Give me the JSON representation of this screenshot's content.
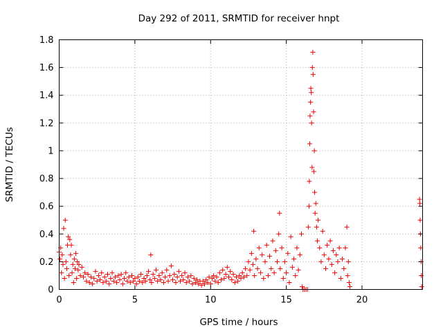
{
  "chart_data": {
    "type": "scatter",
    "title": "Day 292 of 2011, SRMTID for receiver hnpt",
    "xlabel": "GPS time / hours",
    "ylabel": "SRMTID / TECUs",
    "xlim": [
      0,
      24
    ],
    "ylim": [
      0,
      1.8
    ],
    "xticks": [
      0,
      5,
      10,
      15,
      20
    ],
    "yticks": [
      0,
      0.2,
      0.4,
      0.6,
      0.8,
      1,
      1.2,
      1.4,
      1.6,
      1.8
    ],
    "ytick_labels": [
      "0",
      "0.2",
      "0.4",
      "0.6",
      "0.8",
      "1",
      "1.2",
      "1.4",
      "1.6",
      "1.8"
    ],
    "grid": true,
    "marker": "plus",
    "color": "#ee0000",
    "series": [
      {
        "points": [
          [
            0.0,
            0.27
          ],
          [
            0.05,
            0.22
          ],
          [
            0.1,
            0.3
          ],
          [
            0.15,
            0.12
          ],
          [
            0.2,
            0.25
          ],
          [
            0.25,
            0.18
          ],
          [
            0.3,
            0.44
          ],
          [
            0.35,
            0.08
          ],
          [
            0.4,
            0.5
          ],
          [
            0.45,
            0.2
          ],
          [
            0.5,
            0.15
          ],
          [
            0.55,
            0.32
          ],
          [
            0.6,
            0.38
          ],
          [
            0.65,
            0.1
          ],
          [
            0.7,
            0.36
          ],
          [
            0.75,
            0.25
          ],
          [
            0.8,
            0.32
          ],
          [
            0.85,
            0.12
          ],
          [
            0.9,
            0.18
          ],
          [
            0.95,
            0.05
          ],
          [
            1.0,
            0.22
          ],
          [
            1.05,
            0.15
          ],
          [
            1.1,
            0.26
          ],
          [
            1.15,
            0.08
          ],
          [
            1.2,
            0.2
          ],
          [
            1.25,
            0.14
          ],
          [
            1.3,
            0.18
          ],
          [
            1.4,
            0.1
          ],
          [
            1.5,
            0.16
          ],
          [
            1.6,
            0.09
          ],
          [
            1.7,
            0.12
          ],
          [
            1.8,
            0.06
          ],
          [
            1.9,
            0.11
          ],
          [
            2.0,
            0.05
          ],
          [
            2.1,
            0.09
          ],
          [
            2.2,
            0.04
          ],
          [
            2.3,
            0.08
          ],
          [
            2.4,
            0.13
          ],
          [
            2.5,
            0.06
          ],
          [
            2.6,
            0.1
          ],
          [
            2.7,
            0.07
          ],
          [
            2.8,
            0.12
          ],
          [
            2.9,
            0.05
          ],
          [
            3.0,
            0.09
          ],
          [
            3.1,
            0.06
          ],
          [
            3.2,
            0.11
          ],
          [
            3.3,
            0.04
          ],
          [
            3.4,
            0.08
          ],
          [
            3.5,
            0.12
          ],
          [
            3.6,
            0.06
          ],
          [
            3.7,
            0.09
          ],
          [
            3.8,
            0.05
          ],
          [
            3.9,
            0.1
          ],
          [
            4.0,
            0.07
          ],
          [
            4.1,
            0.11
          ],
          [
            4.2,
            0.04
          ],
          [
            4.3,
            0.08
          ],
          [
            4.4,
            0.12
          ],
          [
            4.5,
            0.06
          ],
          [
            4.6,
            0.09
          ],
          [
            4.7,
            0.05
          ],
          [
            4.8,
            0.1
          ],
          [
            4.9,
            0.06
          ],
          [
            5.0,
            0.08
          ],
          [
            5.1,
            0.04
          ],
          [
            5.2,
            0.09
          ],
          [
            5.3,
            0.06
          ],
          [
            5.4,
            0.11
          ],
          [
            5.5,
            0.05
          ],
          [
            5.6,
            0.08
          ],
          [
            5.7,
            0.06
          ],
          [
            5.8,
            0.1
          ],
          [
            5.9,
            0.13
          ],
          [
            6.0,
            0.07
          ],
          [
            6.05,
            0.25
          ],
          [
            6.1,
            0.05
          ],
          [
            6.2,
            0.11
          ],
          [
            6.3,
            0.08
          ],
          [
            6.4,
            0.14
          ],
          [
            6.5,
            0.06
          ],
          [
            6.6,
            0.1
          ],
          [
            6.7,
            0.07
          ],
          [
            6.8,
            0.12
          ],
          [
            6.9,
            0.05
          ],
          [
            7.0,
            0.09
          ],
          [
            7.1,
            0.14
          ],
          [
            7.2,
            0.06
          ],
          [
            7.3,
            0.1
          ],
          [
            7.4,
            0.17
          ],
          [
            7.5,
            0.07
          ],
          [
            7.6,
            0.11
          ],
          [
            7.7,
            0.05
          ],
          [
            7.8,
            0.09
          ],
          [
            7.9,
            0.13
          ],
          [
            8.0,
            0.06
          ],
          [
            8.1,
            0.1
          ],
          [
            8.2,
            0.07
          ],
          [
            8.3,
            0.12
          ],
          [
            8.4,
            0.05
          ],
          [
            8.5,
            0.09
          ],
          [
            8.6,
            0.06
          ],
          [
            8.7,
            0.1
          ],
          [
            8.8,
            0.04
          ],
          [
            8.9,
            0.08
          ],
          [
            9.0,
            0.05
          ],
          [
            9.1,
            0.07
          ],
          [
            9.2,
            0.04
          ],
          [
            9.3,
            0.06
          ],
          [
            9.4,
            0.03
          ],
          [
            9.5,
            0.06
          ],
          [
            9.6,
            0.04
          ],
          [
            9.7,
            0.07
          ],
          [
            9.8,
            0.05
          ],
          [
            9.9,
            0.09
          ],
          [
            10.0,
            0.04
          ],
          [
            10.1,
            0.08
          ],
          [
            10.2,
            0.1
          ],
          [
            10.3,
            0.06
          ],
          [
            10.4,
            0.09
          ],
          [
            10.5,
            0.05
          ],
          [
            10.6,
            0.12
          ],
          [
            10.7,
            0.07
          ],
          [
            10.8,
            0.14
          ],
          [
            10.9,
            0.08
          ],
          [
            11.0,
            0.11
          ],
          [
            11.1,
            0.16
          ],
          [
            11.2,
            0.09
          ],
          [
            11.3,
            0.13
          ],
          [
            11.4,
            0.07
          ],
          [
            11.5,
            0.11
          ],
          [
            11.6,
            0.05
          ],
          [
            11.7,
            0.09
          ],
          [
            11.8,
            0.06
          ],
          [
            11.9,
            0.1
          ],
          [
            12.0,
            0.08
          ],
          [
            12.1,
            0.12
          ],
          [
            12.2,
            0.09
          ],
          [
            12.3,
            0.15
          ],
          [
            12.4,
            0.1
          ],
          [
            12.5,
            0.2
          ],
          [
            12.6,
            0.14
          ],
          [
            12.7,
            0.26
          ],
          [
            12.8,
            0.18
          ],
          [
            12.85,
            0.42
          ],
          [
            12.9,
            0.1
          ],
          [
            13.0,
            0.22
          ],
          [
            13.1,
            0.15
          ],
          [
            13.2,
            0.3
          ],
          [
            13.3,
            0.12
          ],
          [
            13.4,
            0.25
          ],
          [
            13.5,
            0.08
          ],
          [
            13.6,
            0.2
          ],
          [
            13.7,
            0.32
          ],
          [
            13.8,
            0.1
          ],
          [
            13.9,
            0.24
          ],
          [
            14.0,
            0.15
          ],
          [
            14.1,
            0.35
          ],
          [
            14.2,
            0.12
          ],
          [
            14.3,
            0.28
          ],
          [
            14.4,
            0.2
          ],
          [
            14.5,
            0.4
          ],
          [
            14.55,
            0.55
          ],
          [
            14.6,
            0.15
          ],
          [
            14.7,
            0.3
          ],
          [
            14.8,
            0.08
          ],
          [
            14.9,
            0.2
          ],
          [
            15.0,
            0.12
          ],
          [
            15.1,
            0.26
          ],
          [
            15.2,
            0.05
          ],
          [
            15.3,
            0.38
          ],
          [
            15.4,
            0.16
          ],
          [
            15.5,
            0.22
          ],
          [
            15.6,
            0.1
          ],
          [
            15.7,
            0.3
          ],
          [
            15.8,
            0.14
          ],
          [
            15.9,
            0.25
          ],
          [
            16.0,
            0.4
          ],
          [
            16.05,
            0.02
          ],
          [
            16.1,
            0.0
          ],
          [
            16.2,
            0.0
          ],
          [
            16.3,
            0.0
          ],
          [
            16.4,
            0.0
          ],
          [
            16.45,
            0.45
          ],
          [
            16.5,
            0.6
          ],
          [
            16.52,
            0.78
          ],
          [
            16.55,
            1.05
          ],
          [
            16.57,
            1.25
          ],
          [
            16.6,
            1.35
          ],
          [
            16.62,
            1.45
          ],
          [
            16.65,
            1.42
          ],
          [
            16.67,
            1.2
          ],
          [
            16.7,
            0.88
          ],
          [
            16.72,
            1.6
          ],
          [
            16.75,
            1.71
          ],
          [
            16.77,
            1.55
          ],
          [
            16.8,
            1.28
          ],
          [
            16.82,
            0.85
          ],
          [
            16.85,
            1.0
          ],
          [
            16.87,
            0.7
          ],
          [
            16.9,
            0.55
          ],
          [
            16.95,
            0.62
          ],
          [
            17.0,
            0.45
          ],
          [
            17.05,
            0.35
          ],
          [
            17.1,
            0.5
          ],
          [
            17.2,
            0.3
          ],
          [
            17.3,
            0.2
          ],
          [
            17.4,
            0.42
          ],
          [
            17.5,
            0.25
          ],
          [
            17.6,
            0.15
          ],
          [
            17.7,
            0.32
          ],
          [
            17.8,
            0.22
          ],
          [
            17.9,
            0.35
          ],
          [
            18.0,
            0.18
          ],
          [
            18.1,
            0.28
          ],
          [
            18.2,
            0.12
          ],
          [
            18.3,
            0.25
          ],
          [
            18.4,
            0.2
          ],
          [
            18.5,
            0.3
          ],
          [
            18.6,
            0.08
          ],
          [
            18.7,
            0.22
          ],
          [
            18.8,
            0.15
          ],
          [
            18.9,
            0.3
          ],
          [
            19.0,
            0.45
          ],
          [
            19.05,
            0.1
          ],
          [
            19.1,
            0.2
          ],
          [
            19.15,
            0.05
          ],
          [
            19.2,
            0.02
          ],
          [
            23.8,
            0.65
          ],
          [
            23.82,
            0.62
          ],
          [
            23.84,
            0.5
          ],
          [
            23.86,
            0.4
          ],
          [
            23.88,
            0.3
          ],
          [
            23.9,
            0.2
          ],
          [
            23.92,
            0.1
          ],
          [
            23.94,
            0.02
          ]
        ]
      }
    ]
  }
}
